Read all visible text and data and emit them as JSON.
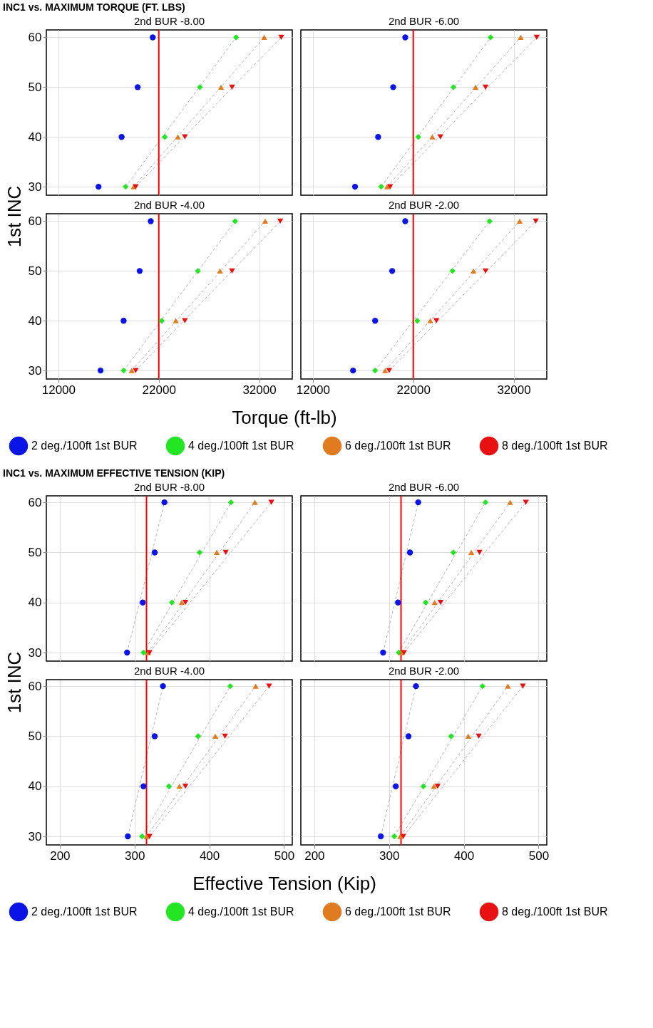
{
  "chart_data": [
    {
      "type": "scatter",
      "annotations": [
        "INC1 vs. MAXIMUM TORQUE (FT. LBS)"
      ],
      "ylabel": "1st INC",
      "xlabel": "Torque (ft-lb)",
      "legend": "bottom",
      "title": "2nd BUR   -8.00",
      "xlim": [
        10800,
        35300
      ],
      "xticks": [
        12000,
        22000,
        32000
      ],
      "ylim": [
        28.3,
        61.5
      ],
      "yticks": [
        30,
        40,
        50,
        60
      ],
      "grid": true,
      "tick_labels": "y",
      "ref_lines": [
        {
          "axis": "x",
          "value": 22000,
          "color": "#ff0000"
        }
      ],
      "series": [
        {
          "type": "line",
          "color": "#b4b4b4",
          "line_style": "dashed",
          "marker": "none",
          "x": [
            18700,
            29700
          ],
          "values": [
            30,
            60
          ]
        },
        {
          "type": "line",
          "color": "#b4b4b4",
          "line_style": "dashed",
          "marker": "none",
          "x": [
            19500,
            32500
          ],
          "values": [
            30,
            60
          ]
        },
        {
          "type": "line",
          "color": "#b4b4b4",
          "line_style": "dashed",
          "marker": "none",
          "x": [
            19700,
            34200
          ],
          "values": [
            30,
            60
          ]
        },
        {
          "name": "2 deg./100ft 1st BUR",
          "color": "#0a14e6",
          "marker": "circle",
          "x": [
            16000,
            18300,
            19900,
            21400
          ],
          "values": [
            30,
            40,
            50,
            60
          ]
        },
        {
          "name": "4 deg./100ft 1st BUR",
          "color": "#22e622",
          "marker": "diamond",
          "x": [
            18700,
            22600,
            26100,
            29700
          ],
          "values": [
            30,
            40,
            50,
            60
          ]
        },
        {
          "name": "6 deg./100ft 1st BUR",
          "color": "#e07b20",
          "marker": "triangle",
          "x": [
            19500,
            23900,
            28200,
            32500
          ],
          "values": [
            30,
            40,
            50,
            60
          ]
        },
        {
          "name": "8 deg./100ft 1st BUR",
          "color": "#e81010",
          "marker": "triangle-down",
          "x": [
            19700,
            24600,
            29300,
            34200
          ],
          "values": [
            30,
            40,
            50,
            60
          ]
        }
      ]
    },
    {
      "type": "scatter",
      "title": "2nd BUR   -6.00",
      "xlim": [
        10800,
        35300
      ],
      "xticks": [
        12000,
        22000,
        32000
      ],
      "ylim": [
        28.3,
        61.5
      ],
      "yticks": [
        30,
        40,
        50,
        60
      ],
      "grid": true,
      "tick_labels": false,
      "ref_lines": [
        {
          "axis": "x",
          "value": 22000,
          "color": "#ff0000"
        }
      ],
      "series": [
        {
          "type": "line",
          "color": "#b4b4b4",
          "line_style": "dashed",
          "marker": "none",
          "x": [
            18800,
            29700
          ],
          "values": [
            30,
            60
          ]
        },
        {
          "type": "line",
          "color": "#b4b4b4",
          "line_style": "dashed",
          "marker": "none",
          "x": [
            19400,
            32700
          ],
          "values": [
            30,
            60
          ]
        },
        {
          "type": "line",
          "color": "#b4b4b4",
          "line_style": "dashed",
          "marker": "none",
          "x": [
            19700,
            34300
          ],
          "values": [
            30,
            60
          ]
        },
        {
          "color": "#0a14e6",
          "marker": "circle",
          "x": [
            16200,
            18500,
            20000,
            21200
          ],
          "values": [
            30,
            40,
            50,
            60
          ]
        },
        {
          "color": "#22e622",
          "marker": "diamond",
          "x": [
            18800,
            22500,
            26000,
            29700
          ],
          "values": [
            30,
            40,
            50,
            60
          ]
        },
        {
          "color": "#e07b20",
          "marker": "triangle",
          "x": [
            19400,
            23900,
            28200,
            32700
          ],
          "values": [
            30,
            40,
            50,
            60
          ]
        },
        {
          "color": "#e81010",
          "marker": "triangle-down",
          "x": [
            19700,
            24700,
            29200,
            34300
          ],
          "values": [
            30,
            40,
            50,
            60
          ]
        }
      ]
    },
    {
      "type": "scatter",
      "title": "2nd BUR   -4.00",
      "xlim": [
        10800,
        35300
      ],
      "xticks": [
        12000,
        22000,
        32000
      ],
      "ylim": [
        28.3,
        61.5
      ],
      "yticks": [
        30,
        40,
        50,
        60
      ],
      "grid": true,
      "ref_lines": [
        {
          "axis": "x",
          "value": 22000,
          "color": "#ff0000"
        }
      ],
      "series": [
        {
          "type": "line",
          "color": "#b4b4b4",
          "line_style": "dashed",
          "marker": "none",
          "x": [
            18500,
            29600
          ],
          "values": [
            30,
            60
          ]
        },
        {
          "type": "line",
          "color": "#b4b4b4",
          "line_style": "dashed",
          "marker": "none",
          "x": [
            19300,
            32600
          ],
          "values": [
            30,
            60
          ]
        },
        {
          "type": "line",
          "color": "#b4b4b4",
          "line_style": "dashed",
          "marker": "none",
          "x": [
            19700,
            34100
          ],
          "values": [
            30,
            60
          ]
        },
        {
          "color": "#0a14e6",
          "marker": "circle",
          "x": [
            16200,
            18500,
            20100,
            21200
          ],
          "values": [
            30,
            40,
            50,
            60
          ]
        },
        {
          "color": "#22e622",
          "marker": "diamond",
          "x": [
            18500,
            22300,
            25900,
            29600
          ],
          "values": [
            30,
            40,
            50,
            60
          ]
        },
        {
          "color": "#e07b20",
          "marker": "triangle",
          "x": [
            19300,
            23700,
            28100,
            32600
          ],
          "values": [
            30,
            40,
            50,
            60
          ]
        },
        {
          "color": "#e81010",
          "marker": "triangle-down",
          "x": [
            19700,
            24600,
            29300,
            34100
          ],
          "values": [
            30,
            40,
            50,
            60
          ]
        }
      ]
    },
    {
      "type": "scatter",
      "title": "2nd BUR   -2.00",
      "xlim": [
        10800,
        35300
      ],
      "xticks": [
        12000,
        22000,
        32000
      ],
      "ylim": [
        28.3,
        61.5
      ],
      "yticks": [
        30,
        40,
        50,
        60
      ],
      "grid": true,
      "tick_labels": "x",
      "ref_lines": [
        {
          "axis": "x",
          "value": 22000,
          "color": "#ff0000"
        }
      ],
      "series": [
        {
          "type": "line",
          "color": "#b4b4b4",
          "line_style": "dashed",
          "marker": "none",
          "x": [
            18200,
            29600
          ],
          "values": [
            30,
            60
          ]
        },
        {
          "type": "line",
          "color": "#b4b4b4",
          "line_style": "dashed",
          "marker": "none",
          "x": [
            19200,
            32600
          ],
          "values": [
            30,
            60
          ]
        },
        {
          "type": "line",
          "color": "#b4b4b4",
          "line_style": "dashed",
          "marker": "none",
          "x": [
            19600,
            34200
          ],
          "values": [
            30,
            60
          ]
        },
        {
          "color": "#0a14e6",
          "marker": "circle",
          "x": [
            16000,
            18200,
            19900,
            21200
          ],
          "values": [
            30,
            40,
            50,
            60
          ]
        },
        {
          "color": "#22e622",
          "marker": "diamond",
          "x": [
            18200,
            22400,
            25900,
            29600
          ],
          "values": [
            30,
            40,
            50,
            60
          ]
        },
        {
          "color": "#e07b20",
          "marker": "triangle",
          "x": [
            19200,
            23700,
            28000,
            32600
          ],
          "values": [
            30,
            40,
            50,
            60
          ]
        },
        {
          "color": "#e81010",
          "marker": "triangle-down",
          "x": [
            19600,
            24300,
            29200,
            34200
          ],
          "values": [
            30,
            40,
            50,
            60
          ]
        }
      ]
    },
    {
      "type": "scatter",
      "annotations": [
        "INC1 vs. MAXIMUM EFFECTIVE TENSION (KIP)"
      ],
      "ylabel": "1st INC",
      "xlabel": "Effective Tension (Kip)",
      "legend": "bottom",
      "title": "2nd BUR   -8.00",
      "xlim": [
        182,
        511
      ],
      "xticks": [
        200,
        300,
        400,
        500
      ],
      "ylim": [
        28.3,
        61.3
      ],
      "yticks": [
        30,
        40,
        50,
        60
      ],
      "grid": true,
      "tick_labels": "y",
      "ref_lines": [
        {
          "axis": "x",
          "value": 316,
          "color": "#ff0000"
        }
      ],
      "series": [
        {
          "type": "line",
          "color": "#b4b4b4",
          "line_style": "dashed",
          "marker": "none",
          "x": [
            290,
            340
          ],
          "values": [
            30,
            60
          ]
        },
        {
          "type": "line",
          "color": "#b4b4b4",
          "line_style": "dashed",
          "marker": "none",
          "x": [
            312,
            429
          ],
          "values": [
            30,
            60
          ]
        },
        {
          "type": "line",
          "color": "#b4b4b4",
          "line_style": "dashed",
          "marker": "none",
          "x": [
            318,
            461
          ],
          "values": [
            30,
            60
          ]
        },
        {
          "type": "line",
          "color": "#b4b4b4",
          "line_style": "dashed",
          "marker": "none",
          "x": [
            320,
            483
          ],
          "values": [
            30,
            60
          ]
        },
        {
          "name": "2 deg./100ft 1st BUR",
          "color": "#0a14e6",
          "marker": "circle",
          "x": [
            290,
            311,
            327,
            340
          ],
          "values": [
            30,
            40,
            50,
            60
          ]
        },
        {
          "name": "4 deg./100ft 1st BUR",
          "color": "#22e622",
          "marker": "diamond",
          "x": [
            312,
            350,
            387,
            429
          ],
          "values": [
            30,
            40,
            50,
            60
          ]
        },
        {
          "name": "6 deg./100ft 1st BUR",
          "color": "#e07b20",
          "marker": "triangle",
          "x": [
            318,
            363,
            410,
            461
          ],
          "values": [
            30,
            40,
            50,
            60
          ]
        },
        {
          "name": "8 deg./100ft 1st BUR",
          "color": "#e81010",
          "marker": "triangle-down",
          "x": [
            320,
            368,
            422,
            483
          ],
          "values": [
            30,
            40,
            50,
            60
          ]
        }
      ]
    },
    {
      "type": "scatter",
      "title": "2nd BUR   -6.00",
      "xlim": [
        182,
        511
      ],
      "xticks": [
        200,
        300,
        400,
        500
      ],
      "ylim": [
        28.3,
        61.3
      ],
      "yticks": [
        30,
        40,
        50,
        60
      ],
      "grid": true,
      "tick_labels": false,
      "ref_lines": [
        {
          "axis": "x",
          "value": 316,
          "color": "#ff0000"
        }
      ],
      "series": [
        {
          "type": "line",
          "color": "#b4b4b4",
          "line_style": "dashed",
          "marker": "none",
          "x": [
            292,
            339
          ],
          "values": [
            30,
            60
          ]
        },
        {
          "type": "line",
          "color": "#b4b4b4",
          "line_style": "dashed",
          "marker": "none",
          "x": [
            313,
            429
          ],
          "values": [
            30,
            60
          ]
        },
        {
          "type": "line",
          "color": "#b4b4b4",
          "line_style": "dashed",
          "marker": "none",
          "x": [
            317,
            462
          ],
          "values": [
            30,
            60
          ]
        },
        {
          "type": "line",
          "color": "#b4b4b4",
          "line_style": "dashed",
          "marker": "none",
          "x": [
            320,
            483
          ],
          "values": [
            30,
            60
          ]
        },
        {
          "color": "#0a14e6",
          "marker": "circle",
          "x": [
            292,
            312,
            328,
            339
          ],
          "values": [
            30,
            40,
            50,
            60
          ]
        },
        {
          "color": "#22e622",
          "marker": "diamond",
          "x": [
            313,
            349,
            386,
            429
          ],
          "values": [
            30,
            40,
            50,
            60
          ]
        },
        {
          "color": "#e07b20",
          "marker": "triangle",
          "x": [
            317,
            361,
            410,
            462
          ],
          "values": [
            30,
            40,
            50,
            60
          ]
        },
        {
          "color": "#e81010",
          "marker": "triangle-down",
          "x": [
            320,
            369,
            421,
            483
          ],
          "values": [
            30,
            40,
            50,
            60
          ]
        }
      ]
    },
    {
      "type": "scatter",
      "title": "2nd BUR   -4.00",
      "xlim": [
        182,
        511
      ],
      "xticks": [
        200,
        300,
        400,
        500
      ],
      "ylim": [
        28.3,
        61.3
      ],
      "yticks": [
        30,
        40,
        50,
        60
      ],
      "grid": true,
      "ref_lines": [
        {
          "axis": "x",
          "value": 316,
          "color": "#ff0000"
        }
      ],
      "series": [
        {
          "type": "line",
          "color": "#b4b4b4",
          "line_style": "dashed",
          "marker": "none",
          "x": [
            291,
            338
          ],
          "values": [
            30,
            60
          ]
        },
        {
          "type": "line",
          "color": "#b4b4b4",
          "line_style": "dashed",
          "marker": "none",
          "x": [
            310,
            428
          ],
          "values": [
            30,
            60
          ]
        },
        {
          "type": "line",
          "color": "#b4b4b4",
          "line_style": "dashed",
          "marker": "none",
          "x": [
            316,
            462
          ],
          "values": [
            30,
            60
          ]
        },
        {
          "type": "line",
          "color": "#b4b4b4",
          "line_style": "dashed",
          "marker": "none",
          "x": [
            320,
            480
          ],
          "values": [
            30,
            60
          ]
        },
        {
          "color": "#0a14e6",
          "marker": "circle",
          "x": [
            291,
            312,
            327,
            338
          ],
          "values": [
            30,
            40,
            50,
            60
          ]
        },
        {
          "color": "#22e622",
          "marker": "diamond",
          "x": [
            310,
            346,
            385,
            428
          ],
          "values": [
            30,
            40,
            50,
            60
          ]
        },
        {
          "color": "#e07b20",
          "marker": "triangle",
          "x": [
            316,
            360,
            408,
            462
          ],
          "values": [
            30,
            40,
            50,
            60
          ]
        },
        {
          "color": "#e81010",
          "marker": "triangle-down",
          "x": [
            320,
            368,
            421,
            480
          ],
          "values": [
            30,
            40,
            50,
            60
          ]
        }
      ]
    },
    {
      "type": "scatter",
      "title": "2nd BUR   -2.00",
      "xlim": [
        182,
        511
      ],
      "xticks": [
        200,
        300,
        400,
        500
      ],
      "ylim": [
        28.3,
        61.3
      ],
      "yticks": [
        30,
        40,
        50,
        60
      ],
      "grid": true,
      "tick_labels": "x",
      "ref_lines": [
        {
          "axis": "x",
          "value": 316,
          "color": "#ff0000"
        }
      ],
      "series": [
        {
          "type": "line",
          "color": "#b4b4b4",
          "line_style": "dashed",
          "marker": "none",
          "x": [
            289,
            336
          ],
          "values": [
            30,
            60
          ]
        },
        {
          "type": "line",
          "color": "#b4b4b4",
          "line_style": "dashed",
          "marker": "none",
          "x": [
            307,
            425
          ],
          "values": [
            30,
            60
          ]
        },
        {
          "type": "line",
          "color": "#b4b4b4",
          "line_style": "dashed",
          "marker": "none",
          "x": [
            315,
            459
          ],
          "values": [
            30,
            60
          ]
        },
        {
          "type": "line",
          "color": "#b4b4b4",
          "line_style": "dashed",
          "marker": "none",
          "x": [
            319,
            479
          ],
          "values": [
            30,
            60
          ]
        },
        {
          "color": "#0a14e6",
          "marker": "circle",
          "x": [
            289,
            309,
            326,
            336
          ],
          "values": [
            30,
            40,
            50,
            60
          ]
        },
        {
          "color": "#22e622",
          "marker": "diamond",
          "x": [
            307,
            346,
            383,
            425
          ],
          "values": [
            30,
            40,
            50,
            60
          ]
        },
        {
          "color": "#e07b20",
          "marker": "triangle",
          "x": [
            315,
            360,
            406,
            459
          ],
          "values": [
            30,
            40,
            50,
            60
          ]
        },
        {
          "color": "#e81010",
          "marker": "triangle-down",
          "x": [
            319,
            365,
            420,
            479
          ],
          "values": [
            30,
            40,
            50,
            60
          ]
        }
      ]
    }
  ]
}
